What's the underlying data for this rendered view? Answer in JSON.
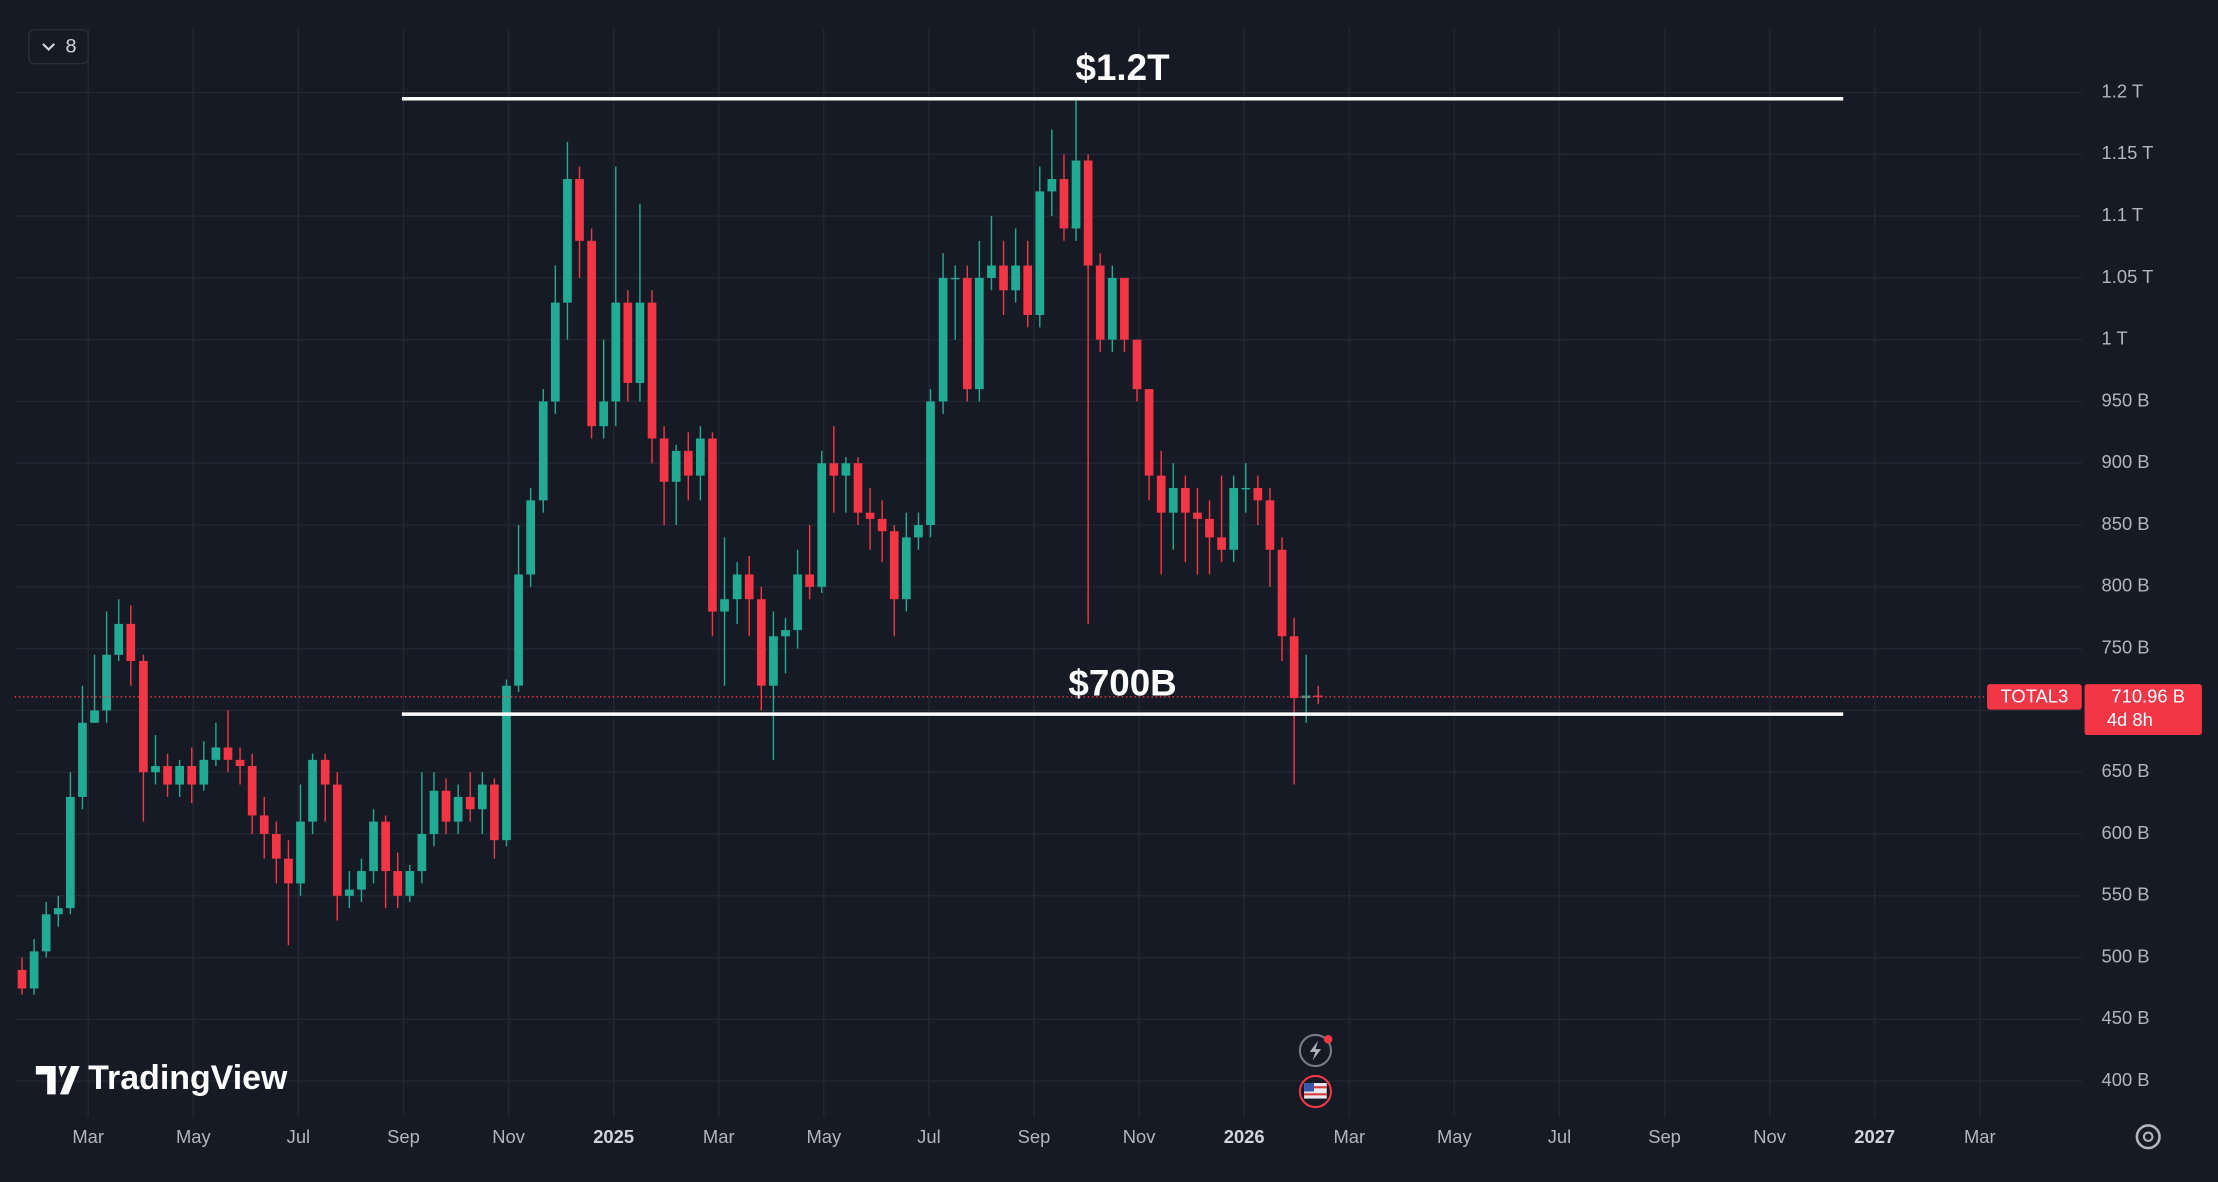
{
  "chart_data": {
    "type": "candlestick",
    "symbol": "TOTAL3",
    "badge": "8",
    "watermark": "TradingView",
    "x": [
      0.74,
      0.97,
      1.2,
      1.43,
      1.66,
      1.89,
      2.12,
      2.35,
      2.58,
      2.81,
      3.05,
      3.28,
      3.51,
      3.74,
      3.97,
      4.2,
      4.43,
      4.66,
      4.89,
      5.12,
      5.35,
      5.58,
      5.81,
      6.04,
      6.27,
      6.51,
      6.74,
      6.97,
      7.2,
      7.43,
      7.66,
      7.89,
      8.12,
      8.35,
      8.58,
      8.81,
      9.04,
      9.27,
      9.5,
      9.73,
      9.96,
      10.19,
      10.42,
      10.66,
      10.89,
      11.12,
      11.35,
      11.58,
      11.81,
      12.04,
      12.27,
      12.5,
      12.73,
      12.96,
      13.19,
      13.42,
      13.65,
      13.88,
      14.11,
      14.35,
      14.58,
      14.81,
      15.04,
      15.27,
      15.5,
      15.73,
      15.96,
      16.19,
      16.42,
      16.65,
      16.88,
      17.11,
      17.34,
      17.57,
      17.8,
      18.03,
      18.27,
      18.5,
      18.73,
      18.96,
      19.19,
      19.42,
      19.65,
      19.88,
      20.11,
      20.34,
      20.57,
      20.8,
      21.03,
      21.26,
      21.49,
      21.72,
      21.96,
      22.19,
      22.42,
      22.65,
      22.88,
      23.11,
      23.34,
      23.57,
      23.8,
      24.03,
      24.26,
      24.49,
      24.72,
      24.95,
      25.18,
      25.41
    ],
    "open": [
      490,
      475,
      505,
      535,
      540,
      630,
      690,
      700,
      745,
      770,
      740,
      650,
      655,
      640,
      655,
      640,
      660,
      670,
      660,
      655,
      615,
      600,
      580,
      560,
      610,
      660,
      640,
      550,
      555,
      570,
      610,
      570,
      550,
      570,
      600,
      635,
      610,
      630,
      620,
      640,
      595,
      720,
      810,
      870,
      950,
      1030,
      1130,
      1080,
      930,
      950,
      1030,
      965,
      1030,
      920,
      885,
      910,
      890,
      920,
      780,
      790,
      810,
      790,
      720,
      760,
      765,
      810,
      800,
      900,
      890,
      900,
      860,
      855,
      845,
      790,
      840,
      850,
      950,
      1050,
      1050,
      960,
      1050,
      1060,
      1040,
      1060,
      1020,
      1120,
      1130,
      1090,
      1145,
      1060,
      1000,
      1050,
      1000,
      960,
      890,
      860,
      880,
      860,
      855,
      840,
      830,
      880,
      880,
      870,
      830,
      760,
      710,
      712
    ],
    "high": [
      500,
      515,
      545,
      550,
      650,
      720,
      745,
      780,
      790,
      785,
      745,
      680,
      665,
      660,
      670,
      675,
      690,
      700,
      670,
      665,
      630,
      610,
      595,
      640,
      665,
      665,
      650,
      570,
      580,
      620,
      615,
      585,
      575,
      650,
      650,
      645,
      640,
      650,
      650,
      645,
      725,
      850,
      880,
      960,
      1060,
      1160,
      1140,
      1090,
      1000,
      1140,
      1040,
      1110,
      1040,
      930,
      915,
      925,
      930,
      925,
      840,
      820,
      825,
      800,
      780,
      775,
      830,
      850,
      910,
      930,
      905,
      905,
      880,
      870,
      850,
      860,
      860,
      960,
      1070,
      1060,
      1060,
      1080,
      1100,
      1080,
      1090,
      1080,
      1140,
      1170,
      1150,
      1195,
      1150,
      1070,
      1060,
      1050,
      1000,
      960,
      910,
      900,
      890,
      880,
      870,
      890,
      890,
      900,
      890,
      880,
      840,
      775,
      745,
      720
    ],
    "low": [
      470,
      470,
      500,
      525,
      535,
      620,
      690,
      690,
      740,
      720,
      610,
      640,
      630,
      630,
      625,
      635,
      655,
      650,
      640,
      600,
      580,
      560,
      510,
      550,
      600,
      610,
      530,
      540,
      545,
      560,
      540,
      540,
      545,
      560,
      590,
      600,
      600,
      610,
      600,
      580,
      590,
      715,
      800,
      860,
      940,
      1000,
      1050,
      920,
      920,
      930,
      950,
      950,
      900,
      850,
      850,
      870,
      870,
      760,
      720,
      770,
      760,
      700,
      660,
      730,
      750,
      790,
      795,
      860,
      860,
      850,
      830,
      820,
      760,
      780,
      830,
      840,
      940,
      1000,
      950,
      950,
      1040,
      1020,
      1030,
      1010,
      1010,
      1100,
      1080,
      1080,
      770,
      990,
      990,
      990,
      950,
      870,
      810,
      830,
      820,
      810,
      810,
      820,
      820,
      860,
      850,
      800,
      740,
      640,
      690,
      705
    ],
    "close": [
      475,
      505,
      535,
      540,
      630,
      690,
      700,
      745,
      770,
      740,
      650,
      655,
      640,
      655,
      640,
      660,
      670,
      660,
      655,
      615,
      600,
      580,
      560,
      610,
      660,
      640,
      550,
      555,
      570,
      610,
      570,
      550,
      570,
      600,
      635,
      610,
      630,
      620,
      640,
      595,
      720,
      810,
      870,
      950,
      1030,
      1130,
      1080,
      930,
      950,
      1030,
      965,
      1030,
      920,
      885,
      910,
      890,
      920,
      780,
      790,
      810,
      790,
      720,
      760,
      765,
      810,
      800,
      900,
      890,
      900,
      860,
      855,
      845,
      790,
      840,
      850,
      950,
      1050,
      1050,
      960,
      1050,
      1060,
      1040,
      1060,
      1020,
      1120,
      1130,
      1090,
      1145,
      1060,
      1000,
      1050,
      1000,
      960,
      890,
      860,
      880,
      860,
      855,
      840,
      830,
      880,
      880,
      870,
      830,
      760,
      710,
      712,
      710.96
    ],
    "up_color": "#22ab94",
    "down_color": "#f23645",
    "last_price": {
      "value": 710.96,
      "label": "710.96 B"
    },
    "countdown": "4d 8h",
    "annotations": [
      {
        "label": "$1.2T",
        "value": 1195,
        "x": [
          7.97,
          35.4
        ]
      },
      {
        "label": "$700B",
        "value": 697,
        "x": [
          7.97,
          35.4
        ]
      }
    ],
    "xlim": [
      0.6,
      39.94
    ],
    "ylim": [
      371,
      1252
    ],
    "grid": true,
    "xticks": [
      {
        "value": 2,
        "label": "Mar"
      },
      {
        "value": 4,
        "label": "May"
      },
      {
        "value": 6,
        "label": "Jul"
      },
      {
        "value": 8,
        "label": "Sep"
      },
      {
        "value": 10,
        "label": "Nov"
      },
      {
        "value": 12,
        "label": "2025"
      },
      {
        "value": 14,
        "label": "Mar"
      },
      {
        "value": 16,
        "label": "May"
      },
      {
        "value": 18,
        "label": "Jul"
      },
      {
        "value": 20,
        "label": "Sep"
      },
      {
        "value": 22,
        "label": "Nov"
      },
      {
        "value": 24,
        "label": "2026"
      },
      {
        "value": 26,
        "label": "Mar"
      },
      {
        "value": 28,
        "label": "May"
      },
      {
        "value": 30,
        "label": "Jul"
      },
      {
        "value": 32,
        "label": "Sep"
      },
      {
        "value": 34,
        "label": "Nov"
      },
      {
        "value": 36,
        "label": "2027"
      },
      {
        "value": 38,
        "label": "Mar"
      }
    ],
    "yticks": [
      {
        "value": 400,
        "label": "400 B"
      },
      {
        "value": 450,
        "label": "450 B"
      },
      {
        "value": 500,
        "label": "500 B"
      },
      {
        "value": 550,
        "label": "550 B"
      },
      {
        "value": 600,
        "label": "600 B"
      },
      {
        "value": 650,
        "label": "650 B"
      },
      {
        "value": 700,
        "label": "700 B"
      },
      {
        "value": 750,
        "label": "750 B"
      },
      {
        "value": 800,
        "label": "800 B"
      },
      {
        "value": 850,
        "label": "850 B"
      },
      {
        "value": 900,
        "label": "900 B"
      },
      {
        "value": 950,
        "label": "950 B"
      },
      {
        "value": 1000,
        "label": "1 T"
      },
      {
        "value": 1050,
        "label": "1.05 T"
      },
      {
        "value": 1100,
        "label": "1.1 T"
      },
      {
        "value": 1150,
        "label": "1.15 T"
      },
      {
        "value": 1200,
        "label": "1.2 T"
      }
    ]
  }
}
